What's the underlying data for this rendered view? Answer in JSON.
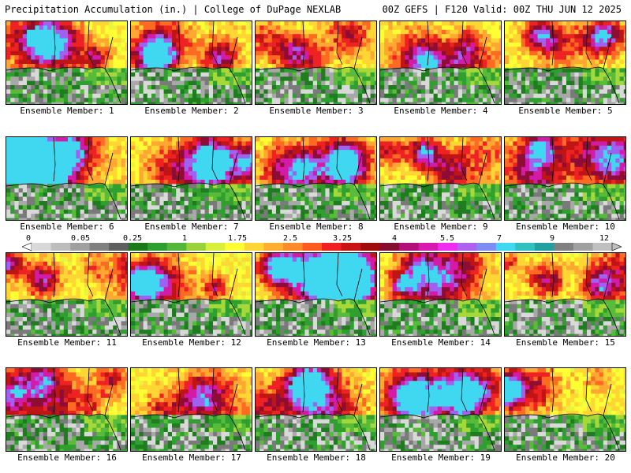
{
  "header": {
    "title": "Precipitation Accumulation (in.) | College of DuPage NEXLAB",
    "run_info": "00Z GEFS | F120 Valid: 00Z THU JUN 12 2025"
  },
  "members": [
    {
      "label": "Ensemble Member: 1",
      "hot": 0.55,
      "seed": 11
    },
    {
      "label": "Ensemble Member: 2",
      "hot": 0.7,
      "seed": 23
    },
    {
      "label": "Ensemble Member: 3",
      "hot": 0.4,
      "seed": 37
    },
    {
      "label": "Ensemble Member: 4",
      "hot": 0.6,
      "seed": 41
    },
    {
      "label": "Ensemble Member: 5",
      "hot": 0.75,
      "seed": 53
    },
    {
      "label": "Ensemble Member: 6",
      "hot": 0.95,
      "seed": 61
    },
    {
      "label": "Ensemble Member: 7",
      "hot": 0.6,
      "seed": 71
    },
    {
      "label": "Ensemble Member: 8",
      "hot": 0.7,
      "seed": 83
    },
    {
      "label": "Ensemble Member: 9",
      "hot": 0.55,
      "seed": 97
    },
    {
      "label": "Ensemble Member: 10",
      "hot": 0.6,
      "seed": 101
    },
    {
      "label": "Ensemble Member: 11",
      "hot": 0.6,
      "seed": 113
    },
    {
      "label": "Ensemble Member: 12",
      "hot": 0.5,
      "seed": 127
    },
    {
      "label": "Ensemble Member: 13",
      "hot": 0.85,
      "seed": 131
    },
    {
      "label": "Ensemble Member: 14",
      "hot": 0.4,
      "seed": 149
    },
    {
      "label": "Ensemble Member: 15",
      "hot": 0.45,
      "seed": 157
    },
    {
      "label": "Ensemble Member: 16",
      "hot": 0.55,
      "seed": 163
    },
    {
      "label": "Ensemble Member: 17",
      "hot": 0.7,
      "seed": 173
    },
    {
      "label": "Ensemble Member: 18",
      "hot": 0.5,
      "seed": 181
    },
    {
      "label": "Ensemble Member: 19",
      "hot": 0.7,
      "seed": 191
    },
    {
      "label": "Ensemble Member: 20",
      "hot": 0.65,
      "seed": 199
    }
  ],
  "colorbar": {
    "tick_labels": [
      "0",
      "0.05",
      "0.25",
      "1",
      "1.75",
      "2.5",
      "3.25",
      "4",
      "5.5",
      "7",
      "9",
      "12"
    ],
    "colors": [
      "#d9d9d9",
      "#bdbdbd",
      "#a0a0a0",
      "#808080",
      "#5f5f5f",
      "#1a7a1a",
      "#2e9e2e",
      "#53b83a",
      "#9ad23a",
      "#d8f03c",
      "#ffff33",
      "#ffd633",
      "#ffae33",
      "#ff8a2a",
      "#ff5a1f",
      "#ef2020",
      "#c81414",
      "#a00c0c",
      "#860c30",
      "#b01078",
      "#d81ab0",
      "#f02cf0",
      "#b060f0",
      "#7c8cf0",
      "#40d8f0",
      "#30c0c0",
      "#20a0a0",
      "#808080",
      "#a0a0a0",
      "#c0c0c0"
    ]
  }
}
